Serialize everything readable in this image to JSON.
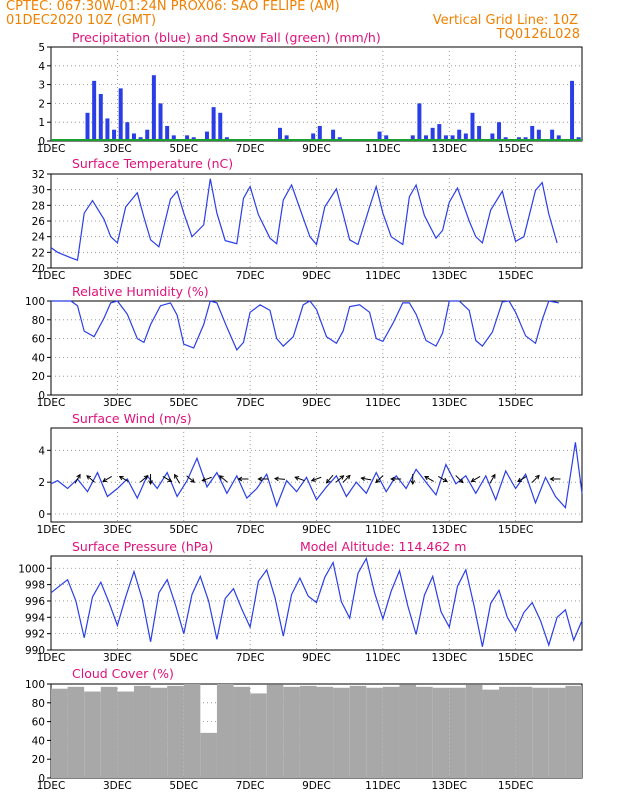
{
  "header": {
    "line1": "CPTEC:   067:30W-01:24N   PROX06: SAO FELIPE (AM)",
    "line2_left": "01DEC2020 10Z (GMT)",
    "line2_right": "Vertical Grid Line: 10Z",
    "code": "TQ0126L028"
  },
  "colors": {
    "header": "#f08000",
    "title": "#e0107a",
    "series": "#2a3ee8",
    "snow": "#18a030",
    "cloud": "#a8a8a8",
    "arrow": "#000000"
  },
  "chart_data": [
    {
      "type": "bar",
      "title": "Precipitation (blue) and Snow Fall (green) (mm/h)",
      "x_ticks": [
        "1DEC",
        "3DEC",
        "5DEC",
        "7DEC",
        "9DEC",
        "11DEC",
        "13DEC",
        "15DEC"
      ],
      "y_ticks": [
        0,
        1,
        2,
        3,
        4,
        5
      ],
      "ylim": [
        0,
        5
      ],
      "grid": true,
      "x": [
        1.1,
        1.3,
        1.5,
        1.7,
        1.9,
        2.1,
        2.3,
        2.5,
        2.7,
        2.9,
        3.1,
        3.3,
        3.5,
        3.7,
        3.9,
        4.1,
        4.3,
        4.5,
        4.7,
        4.9,
        5.1,
        5.3,
        5.5,
        5.7,
        5.9,
        6.1,
        6.3,
        6.5,
        6.7,
        6.9,
        7.1,
        7.3,
        7.5,
        7.7,
        7.9,
        8.1,
        8.3,
        8.5,
        8.7,
        8.9,
        9.1,
        9.3,
        9.5,
        9.7,
        9.9,
        10.1,
        10.3,
        10.5,
        10.7,
        10.9,
        11.1,
        11.3,
        11.5,
        11.7,
        11.9,
        12.1,
        12.3,
        12.5,
        12.7,
        12.9,
        13.1,
        13.3,
        13.5,
        13.7,
        13.9,
        14.1,
        14.3,
        14.5,
        14.7,
        14.9,
        15.1,
        15.3,
        15.5,
        15.7,
        15.9
      ],
      "series": [
        {
          "name": "Precipitation",
          "values": [
            1.5,
            3.2,
            2.5,
            1.2,
            0.6,
            2.8,
            1.0,
            0.4,
            0.2,
            0.6,
            3.5,
            2.0,
            0.8,
            0.3,
            0.1,
            0.3,
            0.2,
            0.0,
            0.5,
            1.8,
            1.5,
            0.2,
            0.0,
            0.0,
            0.1,
            0.0,
            0.0,
            0.0,
            0.0,
            0.7,
            0.3,
            0.0,
            0.0,
            0.0,
            0.4,
            0.8,
            0.0,
            0.6,
            0.2,
            0.0,
            0.0,
            0.0,
            0.0,
            0.0,
            0.5,
            0.3,
            0.0,
            0.0,
            0.0,
            0.3,
            2.0,
            0.3,
            0.7,
            0.9,
            0.3,
            0.3,
            0.6,
            0.4,
            1.5,
            0.8,
            0.0,
            0.4,
            1.0,
            0.2,
            0.0,
            0.2,
            0.2,
            0.8,
            0.6,
            0.0,
            0.6,
            0.3,
            0.0,
            3.2,
            0.2
          ]
        },
        {
          "name": "Snow Fall",
          "values": [
            0,
            0,
            0,
            0,
            0,
            0,
            0,
            0,
            0,
            0,
            0,
            0,
            0,
            0,
            0,
            0,
            0,
            0,
            0,
            0,
            0,
            0,
            0,
            0,
            0,
            0,
            0,
            0,
            0,
            0,
            0,
            0,
            0,
            0,
            0,
            0,
            0,
            0,
            0,
            0,
            0,
            0,
            0,
            0,
            0,
            0,
            0,
            0,
            0,
            0,
            0,
            0,
            0,
            0,
            0,
            0,
            0,
            0,
            0,
            0,
            0,
            0,
            0,
            0,
            0,
            0,
            0,
            0,
            0,
            0,
            0,
            0,
            0,
            0,
            0
          ]
        }
      ]
    },
    {
      "type": "line",
      "title": "Surface Temperature (nC)",
      "x_ticks": [
        "1DEC",
        "3DEC",
        "5DEC",
        "7DEC",
        "9DEC",
        "11DEC",
        "13DEC",
        "15DEC"
      ],
      "y_ticks": [
        20,
        22,
        24,
        26,
        28,
        30,
        32
      ],
      "ylim": [
        20,
        32
      ],
      "grid": true,
      "x": [
        0.0,
        0.2,
        0.6,
        0.8,
        1.0,
        1.25,
        1.6,
        1.8,
        2.0,
        2.25,
        2.6,
        2.8,
        3.0,
        3.25,
        3.6,
        3.8,
        4.0,
        4.25,
        4.6,
        4.8,
        5.0,
        5.25,
        5.6,
        5.8,
        6.0,
        6.25,
        6.6,
        6.8,
        7.0,
        7.25,
        7.6,
        7.8,
        8.0,
        8.25,
        8.6,
        8.8,
        9.0,
        9.25,
        9.6,
        9.8,
        10.0,
        10.25,
        10.6,
        10.8,
        11.0,
        11.25,
        11.6,
        11.8,
        12.0,
        12.25,
        12.6,
        12.8,
        13.0,
        13.25,
        13.6,
        13.8,
        14.0,
        14.25,
        14.6,
        14.8,
        15.0,
        15.25
      ],
      "series": [
        {
          "name": "Surface Temperature",
          "values": [
            22.6,
            22.0,
            21.3,
            21.0,
            27.0,
            28.6,
            26.2,
            24.0,
            23.2,
            27.8,
            29.6,
            26.5,
            23.6,
            22.7,
            28.8,
            29.8,
            27.0,
            24.0,
            25.5,
            31.4,
            27.0,
            23.5,
            23.1,
            28.9,
            30.4,
            26.8,
            23.8,
            23.1,
            28.7,
            30.6,
            26.4,
            24.0,
            23.0,
            27.8,
            30.1,
            26.9,
            23.6,
            23.0,
            27.8,
            30.4,
            27.0,
            24.0,
            23.0,
            29.1,
            30.6,
            26.7,
            23.8,
            24.8,
            28.4,
            30.2,
            26.0,
            24.0,
            23.2,
            27.4,
            29.8,
            26.4,
            23.4,
            24.0,
            29.9,
            30.9,
            26.9,
            23.2
          ]
        }
      ]
    },
    {
      "type": "line",
      "title": "Relative Humidity (%)",
      "x_ticks": [
        "1DEC",
        "3DEC",
        "5DEC",
        "7DEC",
        "9DEC",
        "11DEC",
        "13DEC",
        "15DEC"
      ],
      "y_ticks": [
        0,
        20,
        40,
        60,
        80,
        100
      ],
      "ylim": [
        0,
        100
      ],
      "grid": true,
      "x": [
        0.0,
        0.3,
        0.6,
        0.8,
        1.0,
        1.3,
        1.6,
        1.8,
        2.0,
        2.3,
        2.6,
        2.8,
        3.0,
        3.3,
        3.6,
        3.8,
        4.0,
        4.3,
        4.6,
        4.8,
        5.0,
        5.3,
        5.6,
        5.8,
        6.0,
        6.3,
        6.6,
        6.8,
        7.0,
        7.3,
        7.6,
        7.8,
        8.0,
        8.3,
        8.6,
        8.8,
        9.0,
        9.3,
        9.6,
        9.8,
        10.0,
        10.3,
        10.6,
        10.8,
        11.0,
        11.3,
        11.6,
        11.8,
        12.0,
        12.3,
        12.6,
        12.8,
        13.0,
        13.3,
        13.6,
        13.8,
        14.0,
        14.3,
        14.6,
        14.8,
        15.0,
        15.3
      ],
      "series": [
        {
          "name": "Relative Humidity",
          "values": [
            100,
            100,
            100,
            95,
            68,
            62,
            82,
            98,
            100,
            86,
            60,
            56,
            75,
            95,
            98,
            85,
            54,
            50,
            75,
            100,
            98,
            72,
            48,
            56,
            88,
            96,
            90,
            60,
            52,
            62,
            96,
            100,
            91,
            62,
            55,
            68,
            94,
            96,
            88,
            60,
            57,
            76,
            98,
            98,
            86,
            58,
            52,
            66,
            100,
            100,
            90,
            58,
            52,
            67,
            99,
            100,
            88,
            63,
            55,
            80,
            100,
            98
          ]
        }
      ]
    },
    {
      "type": "line",
      "title": "Surface Wind (m/s)",
      "x_ticks": [
        "1DEC",
        "3DEC",
        "5DEC",
        "7DEC",
        "9DEC",
        "11DEC",
        "13DEC",
        "15DEC"
      ],
      "y_ticks": [
        0,
        2,
        4
      ],
      "ylim": [
        -0.5,
        5.4
      ],
      "grid": true,
      "x": [
        0.0,
        0.2,
        0.5,
        0.8,
        1.1,
        1.4,
        1.7,
        2.0,
        2.3,
        2.6,
        2.9,
        3.2,
        3.5,
        3.8,
        4.1,
        4.4,
        4.7,
        5.0,
        5.3,
        5.6,
        5.9,
        6.2,
        6.5,
        6.8,
        7.1,
        7.4,
        7.7,
        8.0,
        8.3,
        8.6,
        8.9,
        9.2,
        9.5,
        9.8,
        10.1,
        10.4,
        10.7,
        11.0,
        11.3,
        11.6,
        11.9,
        12.2,
        12.5,
        12.8,
        13.1,
        13.4,
        13.7,
        14.0,
        14.3,
        14.6,
        14.9,
        15.2,
        15.5,
        15.8,
        16.0
      ],
      "series": [
        {
          "name": "Surface Wind",
          "values": [
            1.9,
            2.1,
            1.6,
            2.2,
            1.4,
            2.6,
            1.1,
            1.6,
            2.2,
            1.0,
            2.4,
            1.6,
            2.6,
            1.1,
            2.1,
            3.5,
            1.7,
            2.6,
            1.3,
            2.4,
            1.0,
            1.6,
            2.5,
            0.5,
            2.1,
            1.4,
            2.3,
            0.9,
            1.7,
            2.4,
            1.1,
            2.0,
            1.3,
            2.6,
            1.4,
            2.4,
            1.6,
            2.8,
            2.0,
            1.2,
            3.1,
            1.9,
            2.4,
            1.3,
            2.4,
            0.9,
            2.7,
            1.6,
            2.5,
            0.7,
            2.3,
            1.1,
            0.4,
            4.5,
            1.3
          ]
        }
      ],
      "arrows": [
        {
          "day": 0.8,
          "dir_deg": 60
        },
        {
          "day": 1.2,
          "dir_deg": 140
        },
        {
          "day": 1.7,
          "dir_deg": 210
        },
        {
          "day": 2.2,
          "dir_deg": 150
        },
        {
          "day": 2.8,
          "dir_deg": 40
        },
        {
          "day": 3.0,
          "dir_deg": 270
        },
        {
          "day": 3.5,
          "dir_deg": 330
        },
        {
          "day": 3.8,
          "dir_deg": 120
        },
        {
          "day": 4.2,
          "dir_deg": 320
        },
        {
          "day": 4.7,
          "dir_deg": 200
        },
        {
          "day": 5.2,
          "dir_deg": 140
        },
        {
          "day": 5.8,
          "dir_deg": 180
        },
        {
          "day": 6.4,
          "dir_deg": 180
        },
        {
          "day": 6.9,
          "dir_deg": 175
        },
        {
          "day": 7.5,
          "dir_deg": 160
        },
        {
          "day": 8.0,
          "dir_deg": 200
        },
        {
          "day": 8.4,
          "dir_deg": 230
        },
        {
          "day": 8.7,
          "dir_deg": 40
        },
        {
          "day": 8.9,
          "dir_deg": 45
        },
        {
          "day": 9.5,
          "dir_deg": 170
        },
        {
          "day": 9.9,
          "dir_deg": 225
        },
        {
          "day": 10.4,
          "dir_deg": 180
        },
        {
          "day": 10.9,
          "dir_deg": 270
        },
        {
          "day": 11.4,
          "dir_deg": 150
        },
        {
          "day": 11.8,
          "dir_deg": 330
        },
        {
          "day": 12.3,
          "dir_deg": 315
        },
        {
          "day": 12.8,
          "dir_deg": 210
        },
        {
          "day": 13.3,
          "dir_deg": 60
        },
        {
          "day": 14.2,
          "dir_deg": 210
        },
        {
          "day": 14.6,
          "dir_deg": 45
        },
        {
          "day": 15.2,
          "dir_deg": 180
        }
      ]
    },
    {
      "type": "line",
      "title": "Surface Pressure (hPa)",
      "annotation": "Model Altitude: 114.462 m",
      "x_ticks": [
        "1DEC",
        "3DEC",
        "5DEC",
        "7DEC",
        "9DEC",
        "11DEC",
        "13DEC",
        "15DEC"
      ],
      "y_ticks": [
        990,
        992,
        994,
        996,
        998,
        1000
      ],
      "ylim": [
        990,
        1001.5
      ],
      "grid": true,
      "x": [
        0.0,
        0.25,
        0.5,
        0.75,
        1.0,
        1.25,
        1.5,
        1.75,
        2.0,
        2.25,
        2.5,
        2.75,
        3.0,
        3.25,
        3.5,
        3.75,
        4.0,
        4.25,
        4.5,
        4.75,
        5.0,
        5.25,
        5.5,
        5.75,
        6.0,
        6.25,
        6.5,
        6.75,
        7.0,
        7.25,
        7.5,
        7.75,
        8.0,
        8.25,
        8.5,
        8.75,
        9.0,
        9.25,
        9.5,
        9.75,
        10.0,
        10.25,
        10.5,
        10.75,
        11.0,
        11.25,
        11.5,
        11.75,
        12.0,
        12.25,
        12.5,
        12.75,
        13.0,
        13.25,
        13.5,
        13.75,
        14.0,
        14.25,
        14.5,
        14.75,
        15.0,
        15.25,
        15.5,
        15.75,
        16.0
      ],
      "series": [
        {
          "name": "Surface Pressure",
          "values": [
            997.0,
            997.8,
            998.6,
            996.0,
            991.5,
            996.5,
            998.3,
            995.8,
            993.0,
            996.5,
            999.6,
            996.2,
            991.0,
            997.0,
            998.6,
            995.5,
            992.0,
            996.8,
            999.0,
            996.0,
            991.3,
            996.3,
            997.5,
            995.0,
            992.8,
            998.4,
            999.8,
            996.4,
            991.7,
            996.8,
            998.8,
            996.6,
            995.8,
            998.9,
            1000.7,
            995.9,
            993.9,
            999.4,
            1001.2,
            997.0,
            993.8,
            997.2,
            999.7,
            995.4,
            991.9,
            996.7,
            999.0,
            994.7,
            992.8,
            997.8,
            999.8,
            995.4,
            990.4,
            995.7,
            997.3,
            994.0,
            992.3,
            994.6,
            995.8,
            993.6,
            990.6,
            994.0,
            994.9,
            991.2,
            993.6
          ]
        }
      ]
    },
    {
      "type": "bar",
      "title": "Cloud Cover (%)",
      "x_ticks": [
        "1DEC",
        "3DEC",
        "5DEC",
        "7DEC",
        "9DEC",
        "11DEC",
        "13DEC",
        "15DEC"
      ],
      "y_ticks": [
        0,
        20,
        40,
        60,
        80,
        100
      ],
      "ylim": [
        0,
        100
      ],
      "grid": true,
      "x": [
        0.25,
        0.75,
        1.25,
        1.75,
        2.25,
        2.75,
        3.25,
        3.75,
        4.25,
        4.75,
        5.25,
        5.75,
        6.25,
        6.75,
        7.25,
        7.75,
        8.25,
        8.75,
        9.25,
        9.75,
        10.25,
        10.75,
        11.25,
        11.75,
        12.25,
        12.75,
        13.25,
        13.75,
        14.25,
        14.75,
        15.25,
        15.75
      ],
      "series": [
        {
          "name": "Cloud Cover",
          "values": [
            95,
            97,
            92,
            97,
            92,
            98,
            96,
            98,
            100,
            48,
            100,
            97,
            90,
            99,
            97,
            98,
            97,
            96,
            98,
            96,
            97,
            99,
            97,
            96,
            96,
            99,
            94,
            97,
            97,
            96,
            96,
            98
          ]
        }
      ]
    }
  ]
}
